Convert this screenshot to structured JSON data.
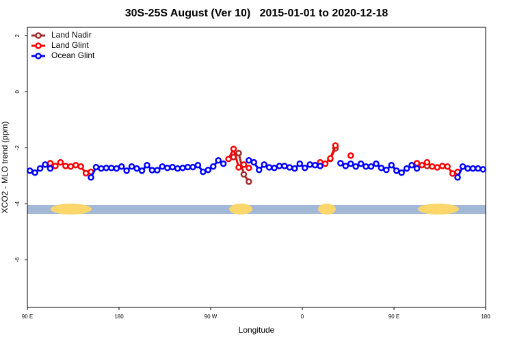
{
  "chart_data": {
    "type": "line",
    "title": "30S-25S August (Ver 10)   2015-01-01 to 2020-12-18",
    "x_label": "Longitude",
    "y_label": "XCO2 - MLO trend (ppm)",
    "xlim": [
      90,
      540
    ],
    "ylim": [
      -7.7,
      2.3
    ],
    "xticks": [
      {
        "value": 90,
        "label": "90 E"
      },
      180,
      {
        "value": 270,
        "label": "90 W"
      },
      {
        "value": 360,
        "label": "0"
      },
      {
        "value": 450,
        "label": "90 E"
      },
      {
        "value": 540,
        "label": "180"
      }
    ],
    "yticks": [
      2,
      0,
      -2,
      -4,
      -6
    ],
    "legend": "top-left",
    "x": [
      92.5,
      97.5,
      102.5,
      107.5,
      112.5,
      117.5,
      122.5,
      127.5,
      132.5,
      137.5,
      142.5,
      147.5,
      152.5,
      157.5,
      162.5,
      167.5,
      172.5,
      177.5,
      182.5,
      187.5,
      192.5,
      197.5,
      202.5,
      207.5,
      212.5,
      217.5,
      222.5,
      227.5,
      232.5,
      237.5,
      242.5,
      247.5,
      252.5,
      257.5,
      262.5,
      267.5,
      272.5,
      277.5,
      282.5,
      287.5,
      292.5,
      297.5,
      302.5,
      307.5,
      312.5,
      317.5,
      322.5,
      327.5,
      332.5,
      337.5,
      342.5,
      347.5,
      352.5,
      357.5,
      362.5,
      367.5,
      372.5,
      377.5,
      382.5,
      387.5,
      392.5,
      397.5,
      402.5,
      407.5,
      412.5,
      417.5,
      422.5,
      427.5,
      432.5,
      437.5,
      442.5,
      447.5,
      452.5,
      457.5,
      462.5,
      467.5,
      472.5,
      477.5,
      482.5,
      487.5,
      492.5,
      497.5,
      502.5,
      507.5,
      512.5,
      517.5,
      522.5,
      527.5,
      532.5,
      537.5
    ],
    "series": [
      {
        "name": "Land Nadir",
        "color": "#a52a2a",
        "values": [
          null,
          null,
          null,
          null,
          null,
          null,
          null,
          null,
          null,
          null,
          null,
          null,
          null,
          null,
          null,
          null,
          null,
          null,
          null,
          null,
          null,
          null,
          null,
          null,
          null,
          null,
          null,
          null,
          null,
          null,
          null,
          null,
          null,
          null,
          null,
          null,
          null,
          null,
          null,
          null,
          -2.33,
          -2.19,
          -2.95,
          -3.21,
          null,
          null,
          null,
          null,
          null,
          null,
          null,
          null,
          null,
          null,
          null,
          null,
          null,
          null,
          null,
          -2.4,
          -2.02,
          null,
          null,
          null,
          null,
          null,
          null,
          null,
          null,
          null,
          null,
          null,
          null,
          null,
          null,
          null,
          null,
          null,
          -2.65,
          null,
          null,
          null,
          null,
          null,
          null,
          null,
          null,
          null,
          null,
          null
        ]
      },
      {
        "name": "Land Glint",
        "color": "#ff0000",
        "values": [
          null,
          null,
          null,
          null,
          -2.55,
          -2.65,
          -2.52,
          -2.65,
          -2.67,
          -2.62,
          -2.67,
          -2.91,
          -2.86,
          null,
          null,
          null,
          null,
          null,
          null,
          null,
          null,
          null,
          null,
          null,
          null,
          null,
          null,
          null,
          null,
          null,
          null,
          null,
          null,
          null,
          null,
          null,
          null,
          null,
          null,
          -2.4,
          -2.04,
          -2.7,
          -2.6,
          -2.72,
          null,
          null,
          null,
          null,
          null,
          null,
          null,
          null,
          null,
          null,
          null,
          null,
          null,
          -2.52,
          -2.57,
          -2.38,
          -1.92,
          null,
          null,
          -2.28,
          null,
          null,
          null,
          null,
          null,
          null,
          null,
          null,
          null,
          null,
          null,
          null,
          -2.55,
          -2.62,
          -2.52,
          -2.67,
          -2.7,
          -2.65,
          -2.67,
          -2.92,
          -2.86,
          null,
          null,
          null,
          null,
          null
        ]
      },
      {
        "name": "Ocean Glint",
        "color": "#0000ff",
        "values": [
          -2.82,
          -2.89,
          -2.74,
          -2.6,
          -2.74,
          null,
          null,
          null,
          null,
          null,
          null,
          null,
          -3.06,
          -2.69,
          -2.74,
          -2.72,
          -2.72,
          -2.74,
          -2.67,
          -2.82,
          -2.67,
          -2.74,
          -2.82,
          -2.62,
          -2.8,
          -2.8,
          -2.67,
          -2.72,
          -2.69,
          -2.74,
          -2.72,
          -2.69,
          -2.69,
          -2.62,
          -2.86,
          -2.79,
          -2.67,
          -2.45,
          -2.57,
          null,
          null,
          null,
          null,
          -2.45,
          -2.52,
          -2.79,
          -2.6,
          -2.7,
          -2.72,
          -2.65,
          -2.65,
          -2.7,
          -2.74,
          -2.57,
          -2.72,
          -2.6,
          -2.62,
          -2.65,
          null,
          null,
          null,
          -2.55,
          -2.65,
          -2.57,
          -2.67,
          -2.57,
          -2.67,
          -2.67,
          -2.57,
          -2.72,
          -2.79,
          -2.62,
          -2.82,
          -2.89,
          -2.74,
          -2.62,
          -2.74,
          null,
          null,
          null,
          null,
          null,
          null,
          null,
          -3.06,
          -2.67,
          -2.74,
          -2.74,
          -2.74,
          -2.77
        ]
      }
    ]
  }
}
